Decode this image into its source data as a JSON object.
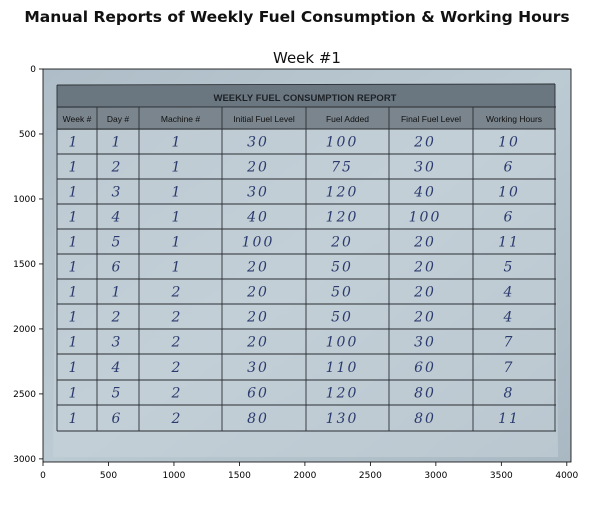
{
  "figure": {
    "suptitle": "Manual Reports of Weekly Fuel Consumption & Working Hours",
    "axes_title": "Week #1",
    "x_ticks": [
      "0",
      "500",
      "1000",
      "1500",
      "2000",
      "2500",
      "3000",
      "3500",
      "4000"
    ],
    "y_ticks": [
      "0",
      "500",
      "1000",
      "1500",
      "2000",
      "2500",
      "3000"
    ]
  },
  "report": {
    "heading": "WEEKLY FUEL CONSUMPTION REPORT",
    "columns": [
      "Week #",
      "Day #",
      "Machine #",
      "Initial Fuel Level",
      "Fuel Added",
      "Final Fuel Level",
      "Working Hours"
    ],
    "rows": [
      [
        "1",
        "1",
        "1",
        "30",
        "100",
        "20",
        "10"
      ],
      [
        "1",
        "2",
        "1",
        "20",
        "75",
        "30",
        "6"
      ],
      [
        "1",
        "3",
        "1",
        "30",
        "120",
        "40",
        "10"
      ],
      [
        "1",
        "4",
        "1",
        "40",
        "120",
        "100",
        "6"
      ],
      [
        "1",
        "5",
        "1",
        "100",
        "20",
        "20",
        "11"
      ],
      [
        "1",
        "6",
        "1",
        "20",
        "50",
        "20",
        "5"
      ],
      [
        "1",
        "1",
        "2",
        "20",
        "50",
        "20",
        "4"
      ],
      [
        "1",
        "2",
        "2",
        "20",
        "50",
        "20",
        "4"
      ],
      [
        "1",
        "3",
        "2",
        "20",
        "100",
        "30",
        "7"
      ],
      [
        "1",
        "4",
        "2",
        "30",
        "110",
        "60",
        "7"
      ],
      [
        "1",
        "5",
        "2",
        "60",
        "120",
        "80",
        "8"
      ],
      [
        "1",
        "6",
        "2",
        "80",
        "130",
        "80",
        "11"
      ]
    ]
  },
  "colors": {
    "paper": "#b4c2cc",
    "header_band": "#6b7780",
    "ink_blue": "#2b3a6e",
    "grid_line": "#2a2f33"
  }
}
